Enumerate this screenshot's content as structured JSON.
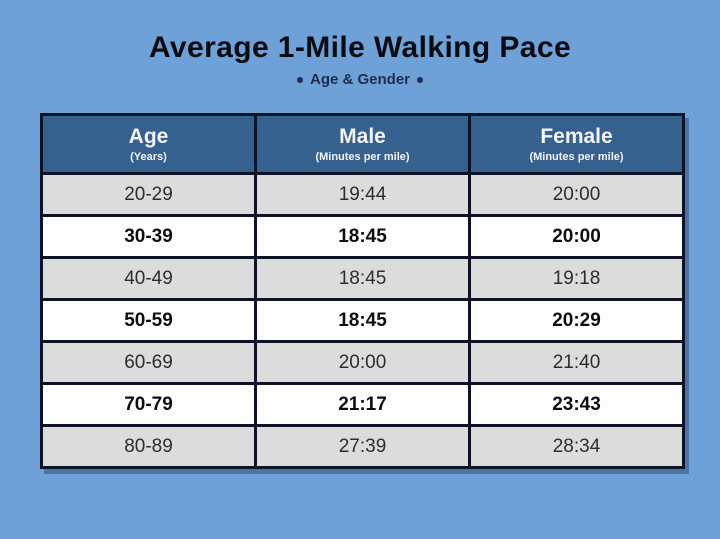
{
  "colors": {
    "background": "#6ea1d7",
    "header_bg": "#36618f",
    "header_text": "#f2f4f7",
    "row_gray_bg": "#dcdcdc",
    "row_white_bg": "#fdfdfd",
    "border": "#0e1425",
    "title_text": "#0b0c12",
    "subtitle_text": "#1e2c50"
  },
  "chart_data": {
    "type": "table",
    "title": "Average 1-Mile Walking Pace",
    "subtitle": "Age & Gender",
    "columns": [
      {
        "label": "Age",
        "unit": "(Years)"
      },
      {
        "label": "Male",
        "unit": "(Minutes per mile)"
      },
      {
        "label": "Female",
        "unit": "(Minutes per mile)"
      }
    ],
    "rows": [
      {
        "age": "20-29",
        "male": "19:44",
        "female": "20:00"
      },
      {
        "age": "30-39",
        "male": "18:45",
        "female": "20:00"
      },
      {
        "age": "40-49",
        "male": "18:45",
        "female": "19:18"
      },
      {
        "age": "50-59",
        "male": "18:45",
        "female": "20:29"
      },
      {
        "age": "60-69",
        "male": "20:00",
        "female": "21:40"
      },
      {
        "age": "70-79",
        "male": "21:17",
        "female": "23:43"
      },
      {
        "age": "80-89",
        "male": "27:39",
        "female": "28:34"
      }
    ]
  }
}
